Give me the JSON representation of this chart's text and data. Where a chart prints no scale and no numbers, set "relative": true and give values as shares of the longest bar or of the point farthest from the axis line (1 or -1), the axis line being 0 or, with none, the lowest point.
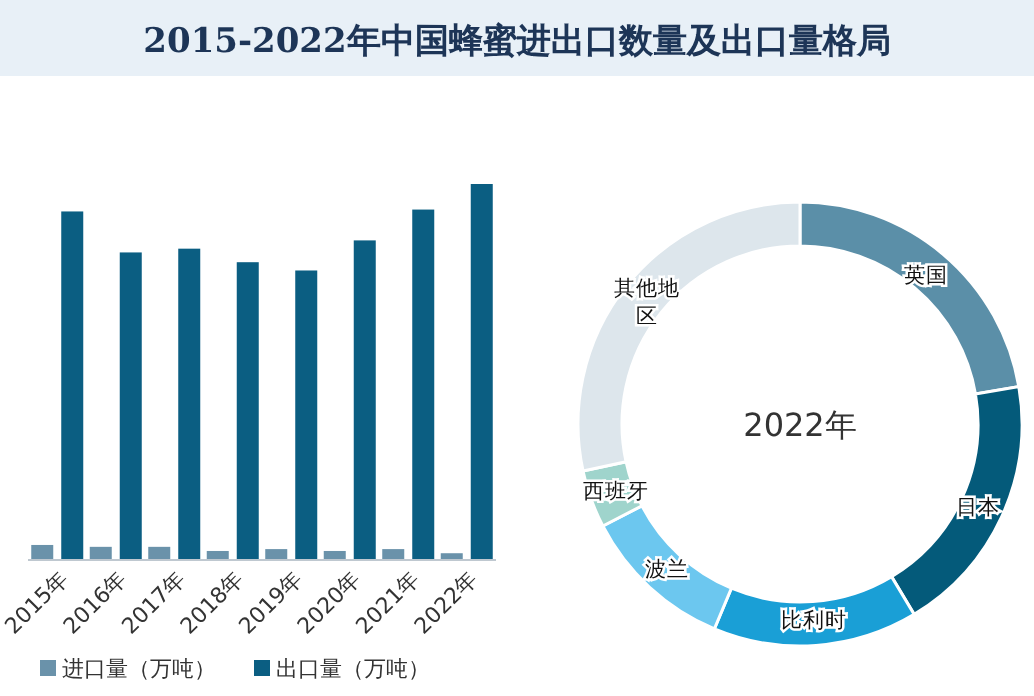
{
  "chart_data": [
    {
      "type": "bar",
      "title": "2015-2022年中国蜂蜜进出口数量及出口量格局",
      "categories": [
        "2015年",
        "2016年",
        "2017年",
        "2018年",
        "2019年",
        "2020年",
        "2021年",
        "2022年"
      ],
      "relative": true,
      "legend": "bottom",
      "series": [
        {
          "name": "进口量（万吨）",
          "color": "#6a92aa",
          "values": [
            0.04,
            0.035,
            0.035,
            0.024,
            0.029,
            0.024,
            0.029,
            0.018
          ]
        },
        {
          "name": "出口量（万吨）",
          "color": "#0b5e82",
          "values": [
            0.927,
            0.818,
            0.828,
            0.792,
            0.77,
            0.85,
            0.932,
            1.0
          ]
        }
      ]
    },
    {
      "type": "donut",
      "categories": [
        "英国",
        "日本",
        "比利时",
        "波兰",
        "西班牙",
        "其他地区"
      ],
      "values": [
        22.3,
        19.1,
        14.9,
        11.1,
        4.2,
        28.4
      ],
      "colors": [
        "#5b8fa8",
        "#045a7a",
        "#1a9fd6",
        "#6cc7ef",
        "#9fd4cc",
        "#dde6ec"
      ],
      "annotations": [
        "2022年"
      ]
    }
  ]
}
